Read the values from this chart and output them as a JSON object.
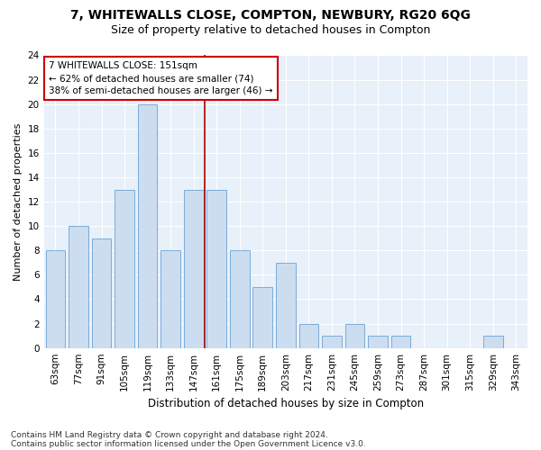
{
  "title1": "7, WHITEWALLS CLOSE, COMPTON, NEWBURY, RG20 6QG",
  "title2": "Size of property relative to detached houses in Compton",
  "xlabel": "Distribution of detached houses by size in Compton",
  "ylabel": "Number of detached properties",
  "annotation_line1": "7 WHITEWALLS CLOSE: 151sqm",
  "annotation_line2": "← 62% of detached houses are smaller (74)",
  "annotation_line3": "38% of semi-detached houses are larger (46) →",
  "categories": [
    "63sqm",
    "77sqm",
    "91sqm",
    "105sqm",
    "119sqm",
    "133sqm",
    "147sqm",
    "161sqm",
    "175sqm",
    "189sqm",
    "203sqm",
    "217sqm",
    "231sqm",
    "245sqm",
    "259sqm",
    "273sqm",
    "287sqm",
    "301sqm",
    "315sqm",
    "329sqm",
    "343sqm"
  ],
  "bar_values": [
    8,
    10,
    9,
    13,
    20,
    8,
    13,
    13,
    8,
    5,
    7,
    2,
    1,
    2,
    1,
    1,
    0,
    0,
    0,
    1,
    0
  ],
  "bar_color": "#ccddf0",
  "bar_edge_color": "#7bacd8",
  "ylim": [
    0,
    24
  ],
  "yticks": [
    0,
    2,
    4,
    6,
    8,
    10,
    12,
    14,
    16,
    18,
    20,
    22,
    24
  ],
  "background_color": "#ffffff",
  "plot_bg_color": "#e8f0fa",
  "grid_color": "#ffffff",
  "annotation_box_facecolor": "#ffffff",
  "annotation_box_edgecolor": "#cc0000",
  "vline_color": "#aa0000",
  "vline_x": 6.5,
  "footer_line1": "Contains HM Land Registry data © Crown copyright and database right 2024.",
  "footer_line2": "Contains public sector information licensed under the Open Government Licence v3.0.",
  "title1_fontsize": 10,
  "title2_fontsize": 9,
  "xlabel_fontsize": 8.5,
  "ylabel_fontsize": 8,
  "tick_fontsize": 7.5,
  "annotation_fontsize": 7.5,
  "footer_fontsize": 6.5
}
